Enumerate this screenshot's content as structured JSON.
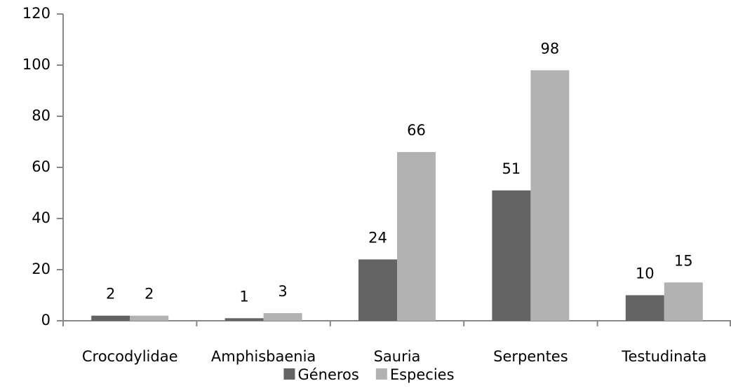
{
  "chart_data": {
    "type": "bar",
    "categories": [
      "Crocodylidae",
      "Amphisbaenia",
      "Sauria",
      "Serpentes",
      "Testudinata"
    ],
    "series": [
      {
        "name": "Géneros",
        "color": "#646464",
        "values": [
          2,
          1,
          24,
          51,
          10
        ]
      },
      {
        "name": "Especies",
        "color": "#b2b2b2",
        "values": [
          2,
          3,
          66,
          98,
          15
        ]
      }
    ],
    "ylim": [
      0,
      120
    ],
    "yticks": [
      0,
      20,
      40,
      60,
      80,
      100,
      120
    ],
    "grid": false,
    "legend": "bottom"
  }
}
